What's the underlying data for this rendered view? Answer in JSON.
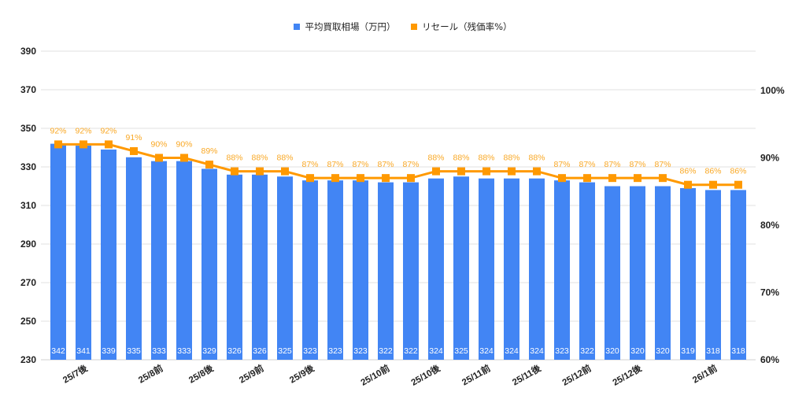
{
  "legend": {
    "bar_label": "平均買取相場（万円）",
    "line_label": "リセール（残価率%）"
  },
  "colors": {
    "bar": "#4285F4",
    "line": "#FF9900",
    "pct_label": "#F9A825",
    "grid": "#E0E0E0",
    "axis_text": "#222222"
  },
  "chart_data": {
    "type": "bar+line",
    "title": "",
    "legend_position": "top",
    "categories": [
      "",
      "25/7後",
      "",
      "",
      "25/8前",
      "",
      "25/8後",
      "",
      "25/9前",
      "",
      "25/9後",
      "",
      "",
      "25/10前",
      "",
      "25/10後",
      "",
      "25/11前",
      "",
      "25/11後",
      "",
      "25/12前",
      "",
      "25/12後",
      "",
      "",
      "26/1前",
      ""
    ],
    "series": [
      {
        "name": "平均買取相場（万円）",
        "type": "bar",
        "axis": "left",
        "values": [
          342,
          341,
          339,
          335,
          333,
          333,
          329,
          326,
          326,
          325,
          323,
          323,
          323,
          322,
          322,
          324,
          325,
          324,
          324,
          324,
          323,
          322,
          320,
          320,
          320,
          319,
          318,
          318
        ]
      },
      {
        "name": "リセール（残価率%）",
        "type": "line",
        "axis": "right",
        "values": [
          92,
          92,
          92,
          91,
          90,
          90,
          89,
          88,
          88,
          88,
          87,
          87,
          87,
          87,
          87,
          88,
          88,
          88,
          88,
          88,
          87,
          87,
          87,
          87,
          87,
          86,
          86,
          86
        ]
      }
    ],
    "left_axis": {
      "ylim": [
        230,
        390
      ],
      "ticks": [
        "230",
        "250",
        "270",
        "290",
        "310",
        "330",
        "350",
        "370",
        "390"
      ]
    },
    "right_axis": {
      "ylim": [
        60,
        100
      ],
      "ticks": [
        "60%",
        "70%",
        "80%",
        "90%",
        "100%"
      ]
    },
    "grid": true
  }
}
